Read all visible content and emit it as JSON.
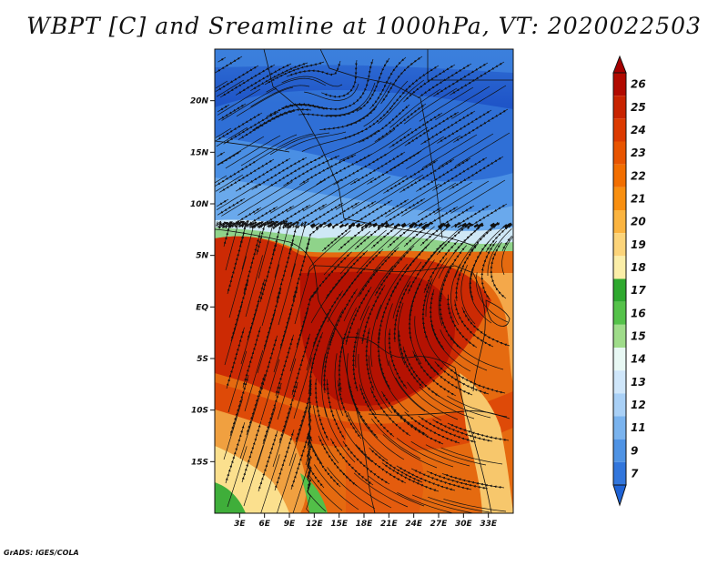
{
  "title": "WBPT [C] and Sreamline at 1000hPa, VT: 2020022503",
  "credit": "GrADS: IGES/COLA",
  "map": {
    "variable": "Wet-bulb potential temperature",
    "units": "C",
    "level": "1000hPa",
    "overlay": "Streamlines",
    "lon_range": [
      0,
      36
    ],
    "lat_range": [
      -20,
      25
    ],
    "lat_ticks": [
      {
        "value": 20,
        "label": "20N"
      },
      {
        "value": 15,
        "label": "15N"
      },
      {
        "value": 10,
        "label": "10N"
      },
      {
        "value": 5,
        "label": "5N"
      },
      {
        "value": 0,
        "label": "EQ"
      },
      {
        "value": -5,
        "label": "5S"
      },
      {
        "value": -10,
        "label": "10S"
      },
      {
        "value": -15,
        "label": "15S"
      }
    ],
    "lon_ticks": [
      {
        "value": 3,
        "label": "3E"
      },
      {
        "value": 6,
        "label": "6E"
      },
      {
        "value": 9,
        "label": "9E"
      },
      {
        "value": 12,
        "label": "12E"
      },
      {
        "value": 15,
        "label": "15E"
      },
      {
        "value": 18,
        "label": "18E"
      },
      {
        "value": 21,
        "label": "21E"
      },
      {
        "value": 24,
        "label": "24E"
      },
      {
        "value": 27,
        "label": "27E"
      },
      {
        "value": 30,
        "label": "30E"
      },
      {
        "value": 33,
        "label": "33E"
      }
    ]
  },
  "colorbar": {
    "labels": [
      "26",
      "25",
      "24",
      "23",
      "22",
      "21",
      "20",
      "19",
      "18",
      "17",
      "16",
      "15",
      "14",
      "13",
      "12",
      "11",
      "9",
      "7"
    ],
    "colors": {
      "above": "#a50000",
      "below": "#1f63d6",
      "bins": [
        "#b10a00",
        "#c82300",
        "#dc3a00",
        "#e85400",
        "#f26e00",
        "#f88f10",
        "#fbb440",
        "#fcd47a",
        "#fbeea8",
        "#2ea82e",
        "#55c24a",
        "#9fdc8a",
        "#e8f8f4",
        "#cfe6fa",
        "#a9d0f6",
        "#7ab3ee",
        "#4f93e4",
        "#3276dc"
      ]
    }
  }
}
